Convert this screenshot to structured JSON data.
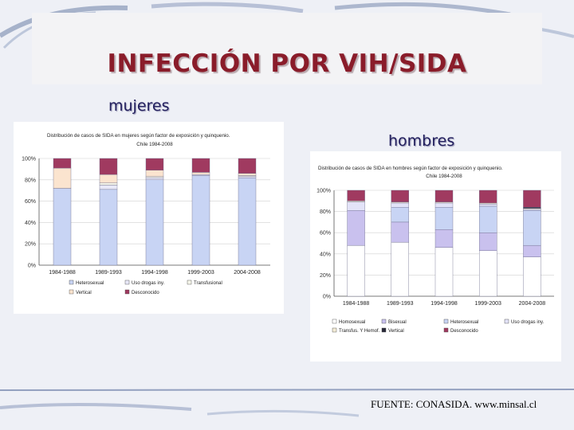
{
  "slide": {
    "title": "INFECCIÓN POR VIH/SIDA",
    "label_women": "mujeres",
    "label_men": "hombres",
    "source": "FUENTE: CONASIDA. www.minsal.cl"
  },
  "chart_data": [
    {
      "type": "bar",
      "stacked": true,
      "title": "Distribución de casos de SIDA en mujeres según factor de exposición y quinquenio.",
      "subtitle": "Chile 1984-2008",
      "categories": [
        "1984-1988",
        "1989-1993",
        "1994-1998",
        "1999-2003",
        "2004-2008"
      ],
      "ylim": [
        0,
        100
      ],
      "yticks": [
        "0%",
        "20%",
        "40%",
        "60%",
        "80%",
        "100%"
      ],
      "legend_position": "bottom",
      "series": [
        {
          "name": "Heterosexual",
          "color": "#c8d4f4",
          "values": [
            72,
            71,
            80,
            84,
            82
          ]
        },
        {
          "name": "Uso drogas iny.",
          "color": "#e8e8f8",
          "values": [
            0,
            4,
            2,
            1,
            1
          ]
        },
        {
          "name": "Transfusional",
          "color": "#f6f6ea",
          "values": [
            0,
            2,
            1,
            0,
            1
          ]
        },
        {
          "name": "Vertical",
          "color": "#fbe4cf",
          "values": [
            19,
            8,
            6,
            2,
            2
          ]
        },
        {
          "name": "Desconocido",
          "color": "#a03a60",
          "values": [
            9,
            15,
            11,
            13,
            14
          ]
        }
      ]
    },
    {
      "type": "bar",
      "stacked": true,
      "title": "Distribución de casos de SIDA en hombres según factor de exposición y quinquenio.",
      "subtitle": "Chile 1984-2008",
      "categories": [
        "1984-1988",
        "1989-1993",
        "1994-1998",
        "1999-2003",
        "2004-2008"
      ],
      "ylim": [
        0,
        100
      ],
      "yticks": [
        "0%",
        "20%",
        "40%",
        "60%",
        "80%",
        "100%"
      ],
      "legend_position": "bottom",
      "series": [
        {
          "name": "Homosexual",
          "color": "#ffffff",
          "values": [
            48,
            51,
            46,
            43,
            37
          ]
        },
        {
          "name": "Bisexual",
          "color": "#c9c1ee",
          "values": [
            33,
            19,
            17,
            17,
            11
          ]
        },
        {
          "name": "Heterosexual",
          "color": "#c8d4f4",
          "values": [
            0,
            14,
            21,
            25,
            33
          ]
        },
        {
          "name": "Uso drogas iny.",
          "color": "#e3e3f8",
          "values": [
            8,
            4,
            4,
            2,
            1
          ]
        },
        {
          "name": "Transfus. Y Hemof.",
          "color": "#f3ecd6",
          "values": [
            1,
            1,
            1,
            1,
            1
          ]
        },
        {
          "name": "Vertical",
          "color": "#2a2a3a",
          "values": [
            0,
            0,
            0,
            0,
            1
          ]
        },
        {
          "name": "Desconocido",
          "color": "#a03a60",
          "values": [
            10,
            11,
            11,
            12,
            16
          ]
        }
      ]
    }
  ]
}
